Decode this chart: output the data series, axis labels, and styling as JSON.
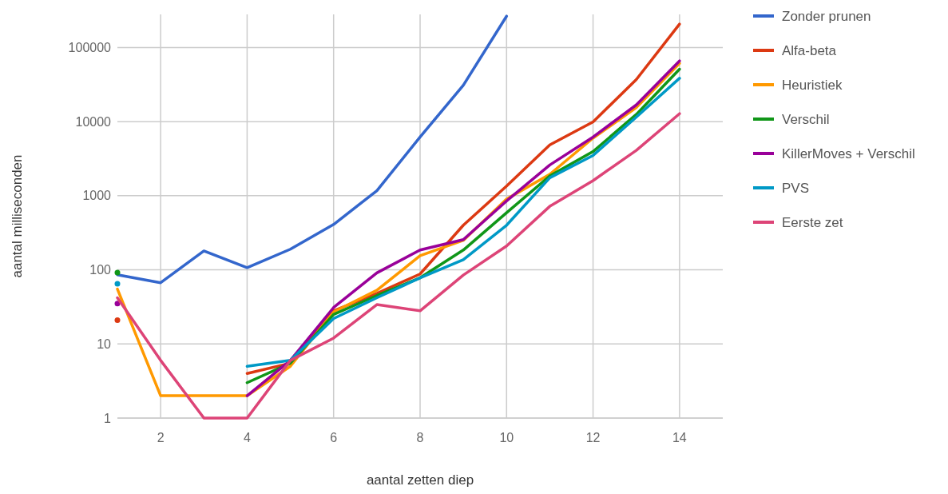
{
  "chart_data": {
    "type": "line",
    "xlabel": "aantal zetten diep",
    "ylabel": "aantal milliseconden",
    "x": [
      1,
      2,
      3,
      4,
      5,
      6,
      7,
      8,
      9,
      10,
      11,
      12,
      13,
      14
    ],
    "xlim": [
      1,
      15
    ],
    "xticks": [
      2,
      4,
      6,
      8,
      10,
      12,
      14
    ],
    "ylim": [
      1,
      280000
    ],
    "yticks": [
      1,
      10,
      100,
      1000,
      10000,
      100000
    ],
    "log": "y",
    "grid": true,
    "legend": "right",
    "series": [
      {
        "name": "Zonder prunen",
        "color": "#3366cc",
        "values": [
          86,
          67,
          180,
          107,
          190,
          410,
          1170,
          6200,
          31000,
          265000,
          null,
          null,
          null,
          null
        ]
      },
      {
        "name": "Alfa-beta",
        "color": "#dc3912",
        "values": [
          21,
          null,
          null,
          4,
          5.5,
          28,
          48,
          88,
          400,
          1350,
          4850,
          9900,
          37000,
          207000
        ]
      },
      {
        "name": "Heuristiek",
        "color": "#ff9900",
        "values": [
          55,
          2,
          2,
          2,
          5,
          27,
          53,
          155,
          250,
          900,
          1950,
          6000,
          15500,
          61000
        ]
      },
      {
        "name": "Verschil",
        "color": "#109618",
        "values": [
          92,
          null,
          null,
          3,
          5.5,
          25,
          45,
          78,
          185,
          590,
          1850,
          3950,
          12500,
          51000
        ]
      },
      {
        "name": "KillerMoves + Verschil",
        "color": "#990099",
        "values": [
          35,
          null,
          null,
          2,
          6,
          31,
          91,
          185,
          256,
          850,
          2600,
          6200,
          16800,
          66000
        ]
      },
      {
        "name": "PVS",
        "color": "#0099c6",
        "values": [
          65,
          null,
          null,
          5,
          6,
          22,
          42,
          78,
          137,
          400,
          1750,
          3500,
          11500,
          38500
        ]
      },
      {
        "name": "Eerste zet",
        "color": "#dd4477",
        "values": [
          42,
          6,
          1,
          1,
          6,
          12,
          34,
          28,
          85,
          210,
          720,
          1600,
          4100,
          12800
        ]
      }
    ]
  }
}
